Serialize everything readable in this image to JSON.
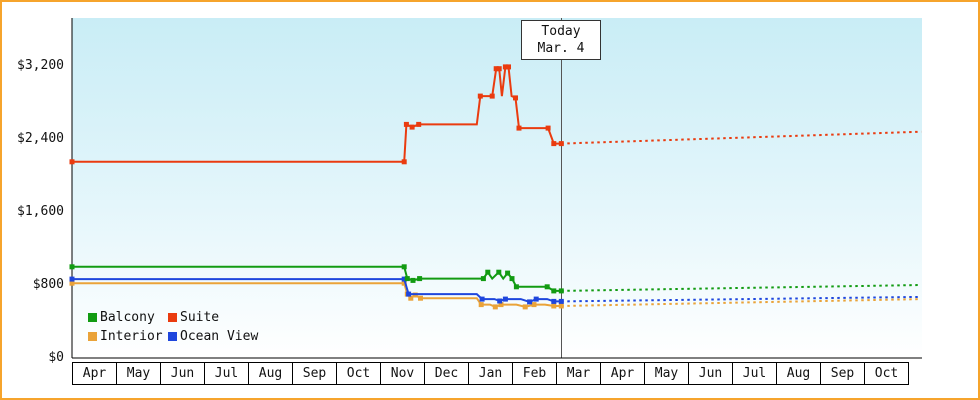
{
  "frame": {
    "border_color": "#f6a42c"
  },
  "chart_data": {
    "type": "line",
    "title": "",
    "description": "Cruise cabin price history by category with forecast after today",
    "x_axis": {
      "unit": "month",
      "months": [
        "Apr",
        "May",
        "Jun",
        "Jul",
        "Aug",
        "Sep",
        "Oct",
        "Nov",
        "Dec",
        "Jan",
        "Feb",
        "Mar",
        "Apr",
        "May",
        "Jun",
        "Jul",
        "Aug",
        "Sep",
        "Oct"
      ]
    },
    "y_axis": {
      "ticks": [
        {
          "value": 0,
          "label": "$0"
        },
        {
          "value": 800,
          "label": "$800"
        },
        {
          "value": 1600,
          "label": "$1,600"
        },
        {
          "value": 2400,
          "label": "$2,400"
        },
        {
          "value": 3200,
          "label": "$3,200"
        }
      ],
      "ylim": [
        0,
        3720
      ],
      "grid": false
    },
    "today_marker": {
      "line1": "Today",
      "line2": "Mar. 4",
      "x": 11.12
    },
    "x_range": [
      0,
      19.3
    ],
    "legend": {
      "position": "bottom-left",
      "items": [
        {
          "label": "Balcony",
          "color": "#129b12"
        },
        {
          "label": "Suite",
          "color": "#ea3b0f"
        },
        {
          "label": "Interior",
          "color": "#eaa339"
        },
        {
          "label": "Ocean View",
          "color": "#1e46dd"
        }
      ]
    },
    "series": [
      {
        "name": "Interior",
        "color": "#eaa339",
        "history": [
          [
            0,
            820
          ],
          [
            7.55,
            820
          ],
          [
            7.62,
            700
          ],
          [
            7.7,
            655
          ],
          [
            7.8,
            690
          ],
          [
            7.92,
            655
          ],
          [
            9.2,
            655
          ],
          [
            9.3,
            585
          ],
          [
            9.5,
            585
          ],
          [
            9.62,
            560
          ],
          [
            9.75,
            585
          ],
          [
            10.1,
            585
          ],
          [
            10.3,
            560
          ],
          [
            10.5,
            585
          ],
          [
            10.75,
            585
          ],
          [
            10.95,
            570
          ],
          [
            11.12,
            570
          ]
        ],
        "markers": [
          [
            0,
            820
          ],
          [
            7.55,
            820
          ],
          [
            7.62,
            700
          ],
          [
            7.7,
            655
          ],
          [
            7.8,
            690
          ],
          [
            7.92,
            655
          ],
          [
            9.3,
            585
          ],
          [
            9.62,
            560
          ],
          [
            9.75,
            585
          ],
          [
            10.3,
            560
          ],
          [
            10.5,
            585
          ],
          [
            10.95,
            570
          ],
          [
            11.12,
            570
          ]
        ],
        "forecast": [
          [
            11.12,
            570
          ],
          [
            19.3,
            645
          ]
        ]
      },
      {
        "name": "Ocean View",
        "color": "#1e46dd",
        "history": [
          [
            0,
            865
          ],
          [
            7.55,
            865
          ],
          [
            7.65,
            700
          ],
          [
            9.2,
            700
          ],
          [
            9.32,
            645
          ],
          [
            9.6,
            645
          ],
          [
            9.72,
            625
          ],
          [
            9.85,
            645
          ],
          [
            10.2,
            645
          ],
          [
            10.4,
            615
          ],
          [
            10.55,
            645
          ],
          [
            10.8,
            645
          ],
          [
            10.95,
            620
          ],
          [
            11.12,
            620
          ]
        ],
        "markers": [
          [
            0,
            865
          ],
          [
            7.55,
            865
          ],
          [
            7.65,
            700
          ],
          [
            9.32,
            645
          ],
          [
            9.72,
            625
          ],
          [
            9.85,
            645
          ],
          [
            10.4,
            615
          ],
          [
            10.55,
            645
          ],
          [
            10.95,
            620
          ],
          [
            11.12,
            620
          ]
        ],
        "forecast": [
          [
            11.12,
            620
          ],
          [
            19.3,
            670
          ]
        ]
      },
      {
        "name": "Balcony",
        "color": "#129b12",
        "history": [
          [
            0,
            1000
          ],
          [
            7.55,
            1000
          ],
          [
            7.62,
            870
          ],
          [
            7.75,
            850
          ],
          [
            7.9,
            870
          ],
          [
            9.2,
            870
          ],
          [
            9.35,
            870
          ],
          [
            9.45,
            940
          ],
          [
            9.55,
            870
          ],
          [
            9.7,
            940
          ],
          [
            9.8,
            870
          ],
          [
            9.9,
            930
          ],
          [
            10.0,
            870
          ],
          [
            10.1,
            780
          ],
          [
            10.8,
            780
          ],
          [
            10.95,
            735
          ],
          [
            11.12,
            735
          ]
        ],
        "markers": [
          [
            0,
            1000
          ],
          [
            7.55,
            1000
          ],
          [
            7.62,
            870
          ],
          [
            7.75,
            850
          ],
          [
            7.9,
            870
          ],
          [
            9.35,
            870
          ],
          [
            9.45,
            940
          ],
          [
            9.7,
            940
          ],
          [
            9.9,
            930
          ],
          [
            10.0,
            870
          ],
          [
            10.1,
            780
          ],
          [
            10.8,
            780
          ],
          [
            10.95,
            735
          ],
          [
            11.12,
            735
          ]
        ],
        "forecast": [
          [
            11.12,
            735
          ],
          [
            19.3,
            800
          ]
        ]
      },
      {
        "name": "Suite",
        "color": "#ea3b0f",
        "history": [
          [
            0,
            2150
          ],
          [
            7.55,
            2150
          ],
          [
            7.6,
            2560
          ],
          [
            7.73,
            2530
          ],
          [
            7.88,
            2560
          ],
          [
            9.2,
            2560
          ],
          [
            9.28,
            2870
          ],
          [
            9.55,
            2870
          ],
          [
            9.64,
            3170
          ],
          [
            9.71,
            3170
          ],
          [
            9.77,
            2870
          ],
          [
            9.85,
            3190
          ],
          [
            9.92,
            3190
          ],
          [
            9.99,
            2870
          ],
          [
            10.08,
            2850
          ],
          [
            10.16,
            2520
          ],
          [
            10.82,
            2520
          ],
          [
            10.95,
            2350
          ],
          [
            11.12,
            2350
          ]
        ],
        "markers": [
          [
            0,
            2150
          ],
          [
            7.55,
            2150
          ],
          [
            7.6,
            2560
          ],
          [
            7.73,
            2530
          ],
          [
            7.88,
            2560
          ],
          [
            9.28,
            2870
          ],
          [
            9.55,
            2870
          ],
          [
            9.64,
            3170
          ],
          [
            9.71,
            3170
          ],
          [
            9.85,
            3190
          ],
          [
            9.92,
            3190
          ],
          [
            10.08,
            2850
          ],
          [
            10.16,
            2520
          ],
          [
            10.82,
            2520
          ],
          [
            10.95,
            2350
          ],
          [
            11.12,
            2350
          ]
        ],
        "forecast": [
          [
            11.12,
            2350
          ],
          [
            19.3,
            2480
          ]
        ]
      }
    ]
  }
}
